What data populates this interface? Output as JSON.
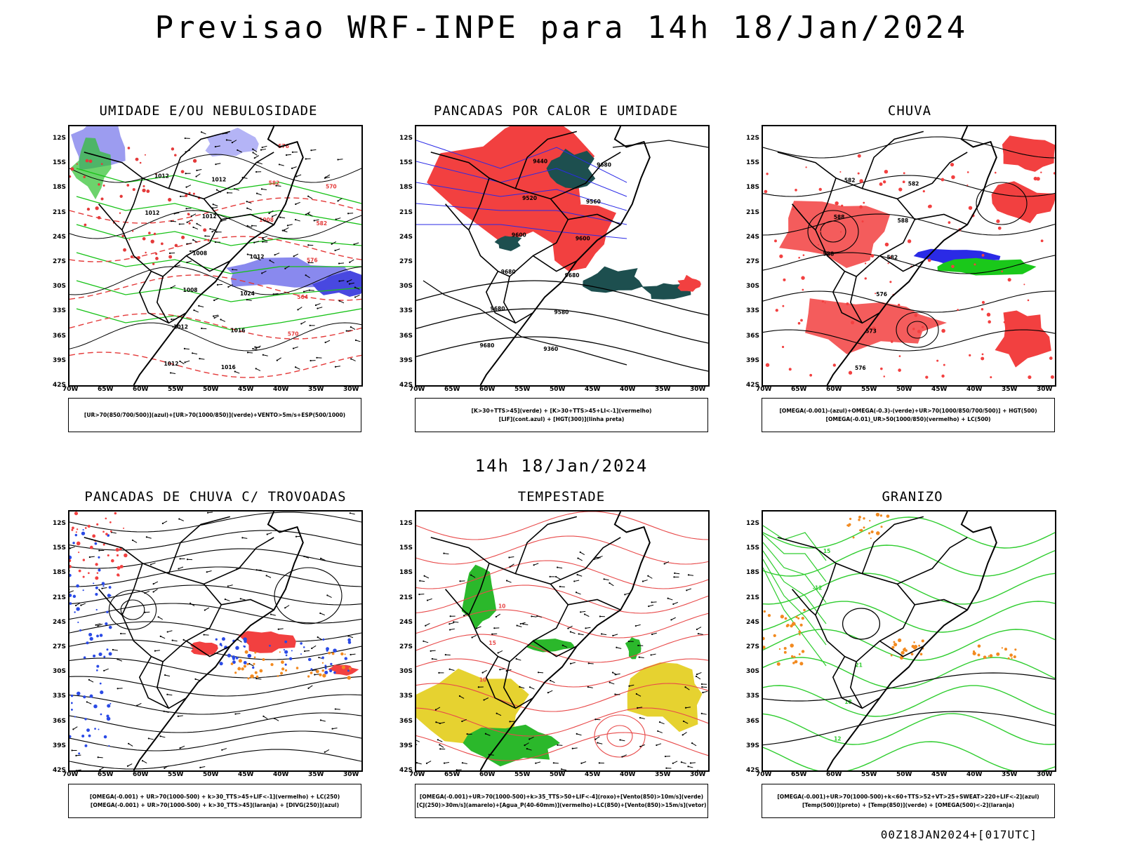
{
  "page": {
    "title": "Previsao WRF-INPE  para 14h 18/Jan/2024",
    "subtime": "14h 18/Jan/2024",
    "footer": "00Z18JAN2024+[017UTC]"
  },
  "axes": {
    "lat_labels": [
      "12S",
      "15S",
      "18S",
      "21S",
      "24S",
      "27S",
      "30S",
      "33S",
      "36S",
      "39S",
      "42S"
    ],
    "lon_labels": [
      "70W",
      "65W",
      "60W",
      "55W",
      "50W",
      "45W",
      "40W",
      "35W",
      "30W"
    ]
  },
  "panels": [
    {
      "id": "umidade",
      "title": "UMIDADE E/OU NEBULOSIDADE",
      "legend": [
        "[UR>70(850/700/500)](azul)+[UR>70(1000/850)](verde)+VENTO>5m/s+ESP(500/1000)"
      ],
      "labels": [
        "1012",
        "1012",
        "1012",
        "1012",
        "1008",
        "1008",
        "1012",
        "1012",
        "1016",
        "1016",
        "1024",
        "1012",
        "1008",
        "582",
        "576",
        "570",
        "564",
        "576",
        "582",
        "570"
      ]
    },
    {
      "id": "pancadas-calor",
      "title": "PANCADAS POR CALOR E UMIDADE",
      "legend": [
        "[K>30+TTS>45](verde)  +  [K>30+TTS>45+LI<-1](vermelho)",
        "[LIF](cont.azul)  +  [HGT(300)](linha preta)"
      ],
      "labels": [
        "9680",
        "9680",
        "9680",
        "9600",
        "9520",
        "9440",
        "9360",
        "9580",
        "9680",
        "9600",
        "9560",
        "9680"
      ]
    },
    {
      "id": "chuva",
      "title": "CHUVA",
      "legend": [
        "[OMEGA(-0.001)-(azul)+OMEGA(-0.3)-(verde)+UR>70(1000/850/700/500)]  +  HGT(500)",
        "[OMEGA(-0.01)_UR>50(1000/850)(vermelho)  +  LC(500)"
      ],
      "labels": [
        "588",
        "588",
        "582",
        "576",
        "573",
        "576",
        "582",
        "588",
        "582"
      ]
    },
    {
      "id": "trovoadas",
      "title": "PANCADAS DE CHUVA C/ TROVOADAS",
      "legend": [
        "[OMEGA(-0.001)  +  UR>70(1000-500)  +  k>30_TTS>45+LIF<-1](vermelho)  +  LC(250)",
        "[OMEGA(-0.001)  +  UR>70(1000-500)  +  k>30_TTS>45](laranja)  +  [DIVG(250)](azul)"
      ],
      "labels": []
    },
    {
      "id": "tempestade",
      "title": "TEMPESTADE",
      "legend": [
        "[OMEGA(-0.001)+UR>70(1000-500)+k>35_TTS>50+LIF<-4](roxo)+[Vento(850)>10m/s](verde)",
        "[CJ(250)>30m/s](amarelo)+[Agua_P(40-60mm)](vermelho)+LC(850)+[Vento(850)>15m/s](vetor)"
      ],
      "labels": [
        "10",
        "15",
        "10"
      ]
    },
    {
      "id": "granizo",
      "title": "GRANIZO",
      "legend": [
        "[OMEGA(-0.001)+UR>70(1000-500)+k<60+TTS>52+VT>25+SWEAT>220+LIF<-2](azul)",
        "[Temp(500)](preto)  +  [Temp(850)](verde)  +  [OMEGA(500)<-2](laranja)"
      ],
      "labels": [
        "-12",
        "15",
        "12",
        "18",
        "21"
      ]
    }
  ]
}
